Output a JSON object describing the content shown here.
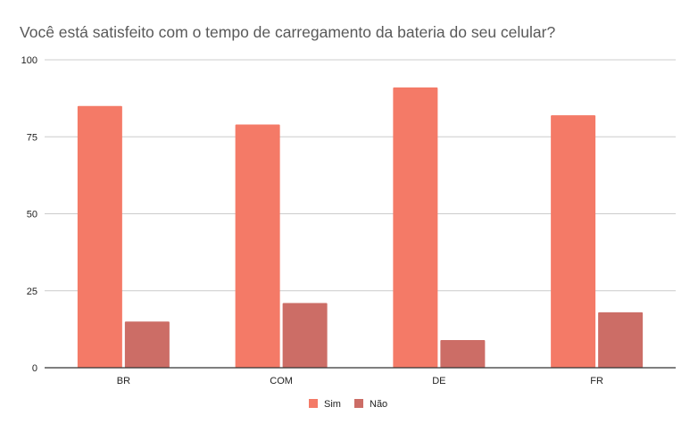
{
  "chart_data": {
    "type": "bar",
    "title": "Você está satisfeito com o tempo de carregamento da bateria do seu celular?",
    "categories": [
      "BR",
      "COM",
      "DE",
      "FR"
    ],
    "series": [
      {
        "name": "Sim",
        "values": [
          85,
          79,
          91,
          82
        ],
        "color": "#f47a67"
      },
      {
        "name": "Não",
        "values": [
          15,
          21,
          9,
          18
        ],
        "color": "#cc6d66"
      }
    ],
    "y_ticks": [
      0,
      25,
      50,
      75,
      100
    ],
    "ylim": [
      0,
      100
    ],
    "grid": true,
    "legend": "bottom"
  }
}
